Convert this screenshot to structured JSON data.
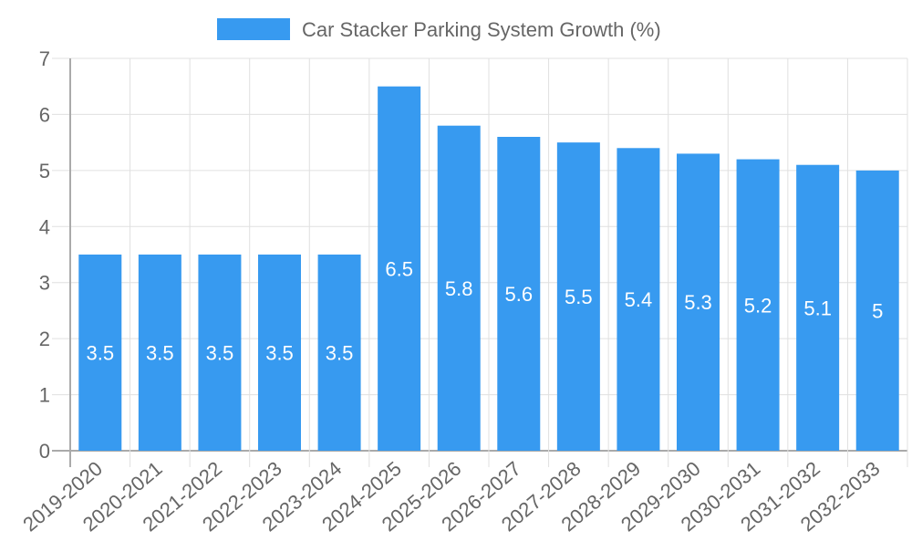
{
  "chart_data": {
    "type": "bar",
    "title": "",
    "legend": {
      "label": "Car Stacker Parking System Growth (%)",
      "placement": "top-center"
    },
    "categories": [
      "2019-2020",
      "2020-2021",
      "2021-2022",
      "2022-2023",
      "2023-2024",
      "2024-2025",
      "2025-2026",
      "2026-2027",
      "2027-2028",
      "2028-2029",
      "2029-2030",
      "2030-2031",
      "2031-2032",
      "2032-2033"
    ],
    "values": [
      3.5,
      3.5,
      3.5,
      3.5,
      3.5,
      6.5,
      5.8,
      5.6,
      5.5,
      5.4,
      5.3,
      5.2,
      5.1,
      5
    ],
    "data_labels": [
      "3.5",
      "3.5",
      "3.5",
      "3.5",
      "3.5",
      "6.5",
      "5.8",
      "5.6",
      "5.5",
      "5.4",
      "5.3",
      "5.2",
      "5.1",
      "5"
    ],
    "yticks": [
      "0",
      "1",
      "2",
      "3",
      "4",
      "5",
      "6",
      "7"
    ],
    "ylim": [
      0,
      7
    ],
    "xlabel": "",
    "ylabel": "",
    "grid": true,
    "colors": {
      "bar": "#379AF0",
      "text": "#666666",
      "grid": "#E0E0E0",
      "axis": "#AAAAAA"
    }
  }
}
